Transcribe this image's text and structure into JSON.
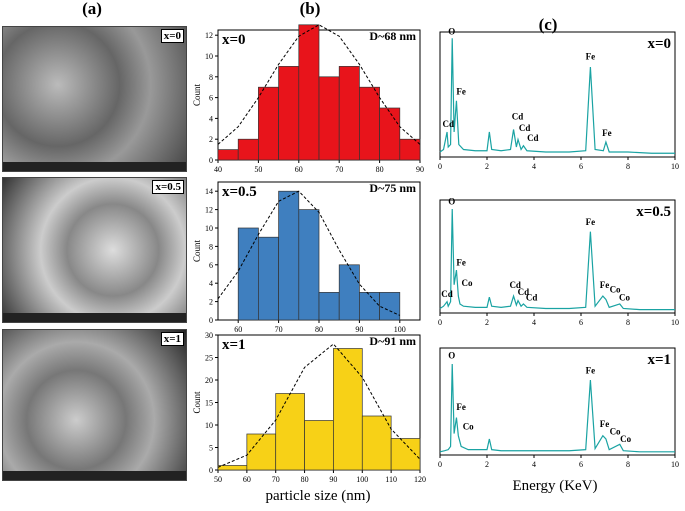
{
  "panel_labels": [
    "(a)",
    "(b)",
    "(c)"
  ],
  "sem_images": [
    {
      "label": "x=0"
    },
    {
      "label": "x=0.5"
    },
    {
      "label": "x=1"
    }
  ],
  "histogram_xlabel": "particle size (nm)",
  "eds_xlabel": "Energy (KeV)",
  "chart_data": [
    {
      "type": "histogram",
      "label": "x=0",
      "size_label": "D~68 nm",
      "ylabel": "Count",
      "color": "#e8141b",
      "bins": [
        40,
        45,
        50,
        55,
        60,
        65,
        70,
        75,
        80,
        85,
        90
      ],
      "values": [
        1,
        2,
        7,
        9,
        13,
        8,
        9,
        7,
        5,
        2
      ],
      "xlim": [
        40,
        90
      ],
      "ylim": [
        0,
        12.5
      ],
      "xticks": [
        40,
        50,
        60,
        70,
        80,
        90
      ],
      "yticks": [
        0,
        2,
        4,
        6,
        8,
        10,
        12
      ],
      "curve": {
        "x": [
          40,
          45,
          50,
          55,
          60,
          65,
          70,
          75,
          80,
          85,
          90
        ],
        "values": [
          1.5,
          3.2,
          6.0,
          9.2,
          11.9,
          13,
          11.9,
          9.2,
          6.0,
          3.2,
          1.5
        ]
      }
    },
    {
      "type": "histogram",
      "label": "x=0.5",
      "size_label": "D~75 nm",
      "ylabel": "Count",
      "color": "#3f7fbf",
      "bins": [
        60,
        65,
        70,
        75,
        80,
        85,
        90,
        95,
        100
      ],
      "values": [
        10,
        9,
        14,
        12,
        3,
        6,
        3,
        3
      ],
      "xlim": [
        55,
        105
      ],
      "ylim": [
        0,
        15
      ],
      "xticks": [
        60,
        70,
        80,
        90,
        100
      ],
      "yticks": [
        0,
        2,
        4,
        6,
        8,
        10,
        12,
        14
      ],
      "curve": {
        "x": [
          55,
          60,
          65,
          70,
          75,
          80,
          85,
          90,
          95,
          100
        ],
        "values": [
          2.3,
          5.3,
          9.3,
          12.9,
          14,
          11.7,
          7.6,
          3.9,
          1.5,
          0.5
        ]
      }
    },
    {
      "type": "histogram",
      "label": "x=1",
      "size_label": "D~91 nm",
      "ylabel": "Count",
      "color": "#f7d117",
      "bins": [
        50,
        60,
        70,
        80,
        90,
        100,
        110,
        120
      ],
      "values": [
        1,
        8,
        17,
        11,
        27,
        12,
        7
      ],
      "xlim": [
        50,
        120
      ],
      "ylim": [
        0,
        30
      ],
      "xticks": [
        50,
        60,
        70,
        80,
        90,
        100,
        110,
        120
      ],
      "yticks": [
        0,
        5,
        10,
        15,
        20,
        25,
        30
      ],
      "curve": {
        "x": [
          50,
          60,
          70,
          80,
          90,
          100,
          110,
          120
        ],
        "values": [
          0.6,
          3.3,
          11.1,
          22.8,
          28,
          20.6,
          9.1,
          2.4
        ]
      }
    },
    {
      "type": "line",
      "label": "x=0",
      "color": "#1aa3a3",
      "xlim": [
        0,
        10
      ],
      "ylim": [
        0,
        100
      ],
      "xticks": [
        0,
        2,
        4,
        6,
        8,
        10
      ],
      "x": [
        0,
        0.15,
        0.3,
        0.35,
        0.45,
        0.52,
        0.6,
        0.7,
        0.8,
        1.0,
        1.5,
        2.0,
        2.1,
        2.2,
        2.6,
        3.0,
        3.13,
        3.25,
        3.32,
        3.45,
        3.55,
        3.7,
        4.5,
        5.5,
        6.2,
        6.4,
        6.6,
        6.95,
        7.06,
        7.2,
        8,
        9,
        10
      ],
      "values": [
        4,
        6,
        20,
        8,
        10,
        95,
        20,
        45,
        10,
        6,
        5,
        5,
        20,
        6,
        5,
        6,
        22,
        8,
        14,
        6,
        9,
        5,
        4,
        4,
        5,
        72,
        6,
        5,
        12,
        4,
        4,
        3,
        3
      ],
      "annotations": [
        {
          "text": "O",
          "x": 0.5,
          "y": 98
        },
        {
          "text": "Fe",
          "x": 0.9,
          "y": 50
        },
        {
          "text": "Cd",
          "x": 0.35,
          "y": 24
        },
        {
          "text": "Cd",
          "x": 3.3,
          "y": 30
        },
        {
          "text": "Cd",
          "x": 3.6,
          "y": 21
        },
        {
          "text": "Cd",
          "x": 3.95,
          "y": 13
        },
        {
          "text": "Fe",
          "x": 6.4,
          "y": 78
        },
        {
          "text": "Fe",
          "x": 7.1,
          "y": 17
        }
      ]
    },
    {
      "type": "line",
      "label": "x=0.5",
      "color": "#1aa3a3",
      "xlim": [
        0,
        10
      ],
      "ylim": [
        0,
        100
      ],
      "xticks": [
        0,
        2,
        4,
        6,
        8,
        10
      ],
      "x": [
        0,
        0.15,
        0.3,
        0.35,
        0.45,
        0.52,
        0.6,
        0.7,
        0.78,
        0.85,
        1.0,
        1.5,
        2.0,
        2.1,
        2.2,
        2.6,
        3.0,
        3.13,
        3.25,
        3.32,
        3.45,
        3.55,
        3.7,
        4.5,
        5.5,
        6.2,
        6.4,
        6.6,
        6.93,
        7.06,
        7.2,
        7.65,
        7.8,
        8.5,
        9,
        10
      ],
      "values": [
        4,
        6,
        10,
        6,
        10,
        92,
        25,
        38,
        15,
        8,
        6,
        5,
        5,
        14,
        6,
        5,
        6,
        15,
        7,
        11,
        6,
        8,
        5,
        4,
        4,
        5,
        72,
        6,
        15,
        12,
        5,
        8,
        4,
        3,
        3,
        3
      ],
      "annotations": [
        {
          "text": "O",
          "x": 0.5,
          "y": 96
        },
        {
          "text": "Fe",
          "x": 0.9,
          "y": 42
        },
        {
          "text": "Co",
          "x": 1.15,
          "y": 24
        },
        {
          "text": "Cd",
          "x": 0.3,
          "y": 14
        },
        {
          "text": "Cd",
          "x": 3.2,
          "y": 22
        },
        {
          "text": "Cd",
          "x": 3.55,
          "y": 16
        },
        {
          "text": "Cd",
          "x": 3.9,
          "y": 11
        },
        {
          "text": "Fe",
          "x": 6.4,
          "y": 78
        },
        {
          "text": "Fe",
          "x": 7.0,
          "y": 22
        },
        {
          "text": "Co",
          "x": 7.45,
          "y": 18
        },
        {
          "text": "Co",
          "x": 7.85,
          "y": 11
        }
      ]
    },
    {
      "type": "line",
      "label": "x=1",
      "color": "#1aa3a3",
      "xlim": [
        0,
        10
      ],
      "ylim": [
        0,
        100
      ],
      "xticks": [
        0,
        2,
        4,
        6,
        8,
        10
      ],
      "x": [
        0,
        0.2,
        0.35,
        0.45,
        0.52,
        0.6,
        0.7,
        0.78,
        0.9,
        1.2,
        1.8,
        2.0,
        2.1,
        2.2,
        2.6,
        4,
        5.5,
        6.2,
        6.4,
        6.6,
        6.93,
        7.06,
        7.2,
        7.65,
        7.8,
        8.5,
        10
      ],
      "values": [
        3,
        4,
        5,
        8,
        85,
        20,
        35,
        18,
        8,
        5,
        5,
        5,
        15,
        5,
        4,
        4,
        4,
        5,
        70,
        6,
        18,
        15,
        5,
        10,
        4,
        3,
        3
      ],
      "annotations": [
        {
          "text": "O",
          "x": 0.5,
          "y": 90
        },
        {
          "text": "Fe",
          "x": 0.9,
          "y": 42
        },
        {
          "text": "Co",
          "x": 1.2,
          "y": 24
        },
        {
          "text": "Fe",
          "x": 6.4,
          "y": 76
        },
        {
          "text": "Fe",
          "x": 7.0,
          "y": 26
        },
        {
          "text": "Co",
          "x": 7.45,
          "y": 19
        },
        {
          "text": "Co",
          "x": 7.9,
          "y": 12
        }
      ]
    }
  ]
}
